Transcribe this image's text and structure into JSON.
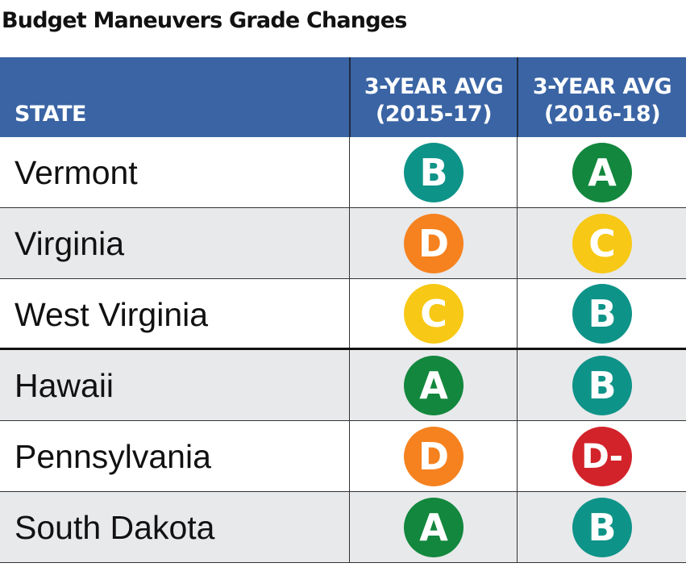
{
  "title": "Budget Maneuvers Grade Changes",
  "header": {
    "state": "STATE",
    "col1_line1": "3-YEAR AVG",
    "col1_line2": "(2015-17)",
    "col2_line1": "3-YEAR AVG",
    "col2_line2": "(2016-18)"
  },
  "colors": {
    "header_bg": "#3a64a4",
    "A": "#12873d",
    "B": "#0e9388",
    "C": "#f7c815",
    "D": "#f5821f",
    "D-": "#d2232a"
  },
  "chart_data": {
    "type": "table",
    "title": "Budget Maneuvers Grade Changes",
    "columns": [
      "STATE",
      "3-YEAR AVG (2015-17)",
      "3-YEAR AVG (2016-18)"
    ],
    "rows": [
      {
        "state": "Vermont",
        "grade_2015_17": "B",
        "grade_2016_18": "A"
      },
      {
        "state": "Virginia",
        "grade_2015_17": "D",
        "grade_2016_18": "C"
      },
      {
        "state": "West Virginia",
        "grade_2015_17": "C",
        "grade_2016_18": "B"
      },
      {
        "state": "Hawaii",
        "grade_2015_17": "A",
        "grade_2016_18": "B"
      },
      {
        "state": "Pennsylvania",
        "grade_2015_17": "D",
        "grade_2016_18": "D-"
      },
      {
        "state": "South Dakota",
        "grade_2015_17": "A",
        "grade_2016_18": "B"
      }
    ],
    "group_break_after_row": 3
  }
}
